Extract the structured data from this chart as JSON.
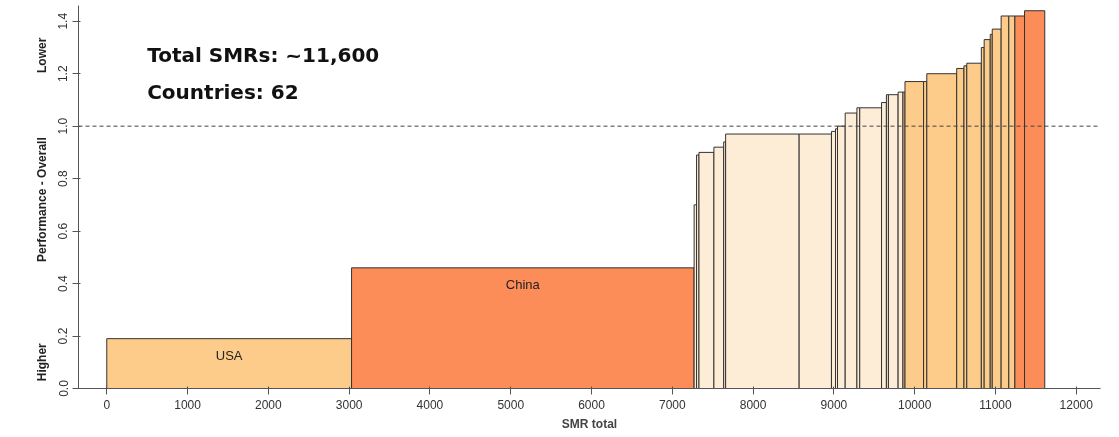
{
  "chart_data": {
    "type": "histogram",
    "xlabel": "SMR total",
    "ylabel": "Performance - Overall",
    "bins": [
      0,
      3030,
      7270,
      7300,
      7330,
      7515,
      7636,
      7660,
      8570,
      8970,
      9020,
      9045,
      9140,
      9285,
      9320,
      9590,
      9650,
      9675,
      9795,
      9855,
      9880,
      10110,
      10150,
      10520,
      10610,
      10645,
      10825,
      10860,
      10935,
      10960,
      11070,
      11165,
      11240,
      11360,
      11610
    ],
    "values": [
      0.19,
      0.46,
      0.7,
      0.89,
      0.9,
      0.92,
      0.94,
      0.97,
      0.97,
      0.98,
      0.99,
      1.0,
      1.05,
      1.07,
      1.07,
      1.09,
      1.12,
      1.12,
      1.13,
      1.13,
      1.17,
      1.17,
      1.2,
      1.22,
      1.23,
      1.24,
      1.3,
      1.33,
      1.35,
      1.37,
      1.42,
      1.42,
      1.42,
      1.44
    ],
    "colors": [
      "#fdcc8a",
      "#fc8d59",
      "#feedd6",
      "#feedd6",
      "#feedd6",
      "#feedd6",
      "#feedd6",
      "#feedd6",
      "#feedd6",
      "#feedd6",
      "#feedd6",
      "#feedd6",
      "#feedd6",
      "#feedd6",
      "#feedd6",
      "#feedd6",
      "#feedd6",
      "#feedd6",
      "#feedd6",
      "#fdcc8a",
      "#fdcc8a",
      "#fdcc8a",
      "#fdcc8a",
      "#fdcc8a",
      "#fdcc8a",
      "#fdcc8a",
      "#fdcc8a",
      "#fdcc8a",
      "#fdcc8a",
      "#fdcc8a",
      "#fdcc8a",
      "#fdcc8a",
      "#fc8d59",
      "#fc8d59"
    ],
    "xlim": [
      -350,
      12300
    ],
    "ylim": [
      0,
      1.46
    ],
    "xticks": [
      0,
      1000,
      2000,
      3000,
      4000,
      5000,
      6000,
      7000,
      8000,
      9000,
      10000,
      11000,
      12000
    ],
    "yticks": [
      {
        "value": 0,
        "label": "0.0"
      },
      {
        "value": 0.2,
        "label": "0.2"
      },
      {
        "value": 0.4,
        "label": "0.4"
      },
      {
        "value": 0.6,
        "label": "0.6"
      },
      {
        "value": 0.8,
        "label": "0.8"
      },
      {
        "value": 1.0,
        "label": "1.0"
      },
      {
        "value": 1.2,
        "label": "1.2"
      },
      {
        "value": 1.4,
        "label": "1.4"
      }
    ],
    "ref_lines": [
      {
        "axis": "y",
        "value": 1.0,
        "label": null,
        "line_style": "dashed"
      }
    ],
    "grid": false,
    "annotations": [
      "USA",
      "China",
      "Total SMRs: ~11,600",
      "Countries: 62",
      "Higher",
      "Lower"
    ]
  }
}
